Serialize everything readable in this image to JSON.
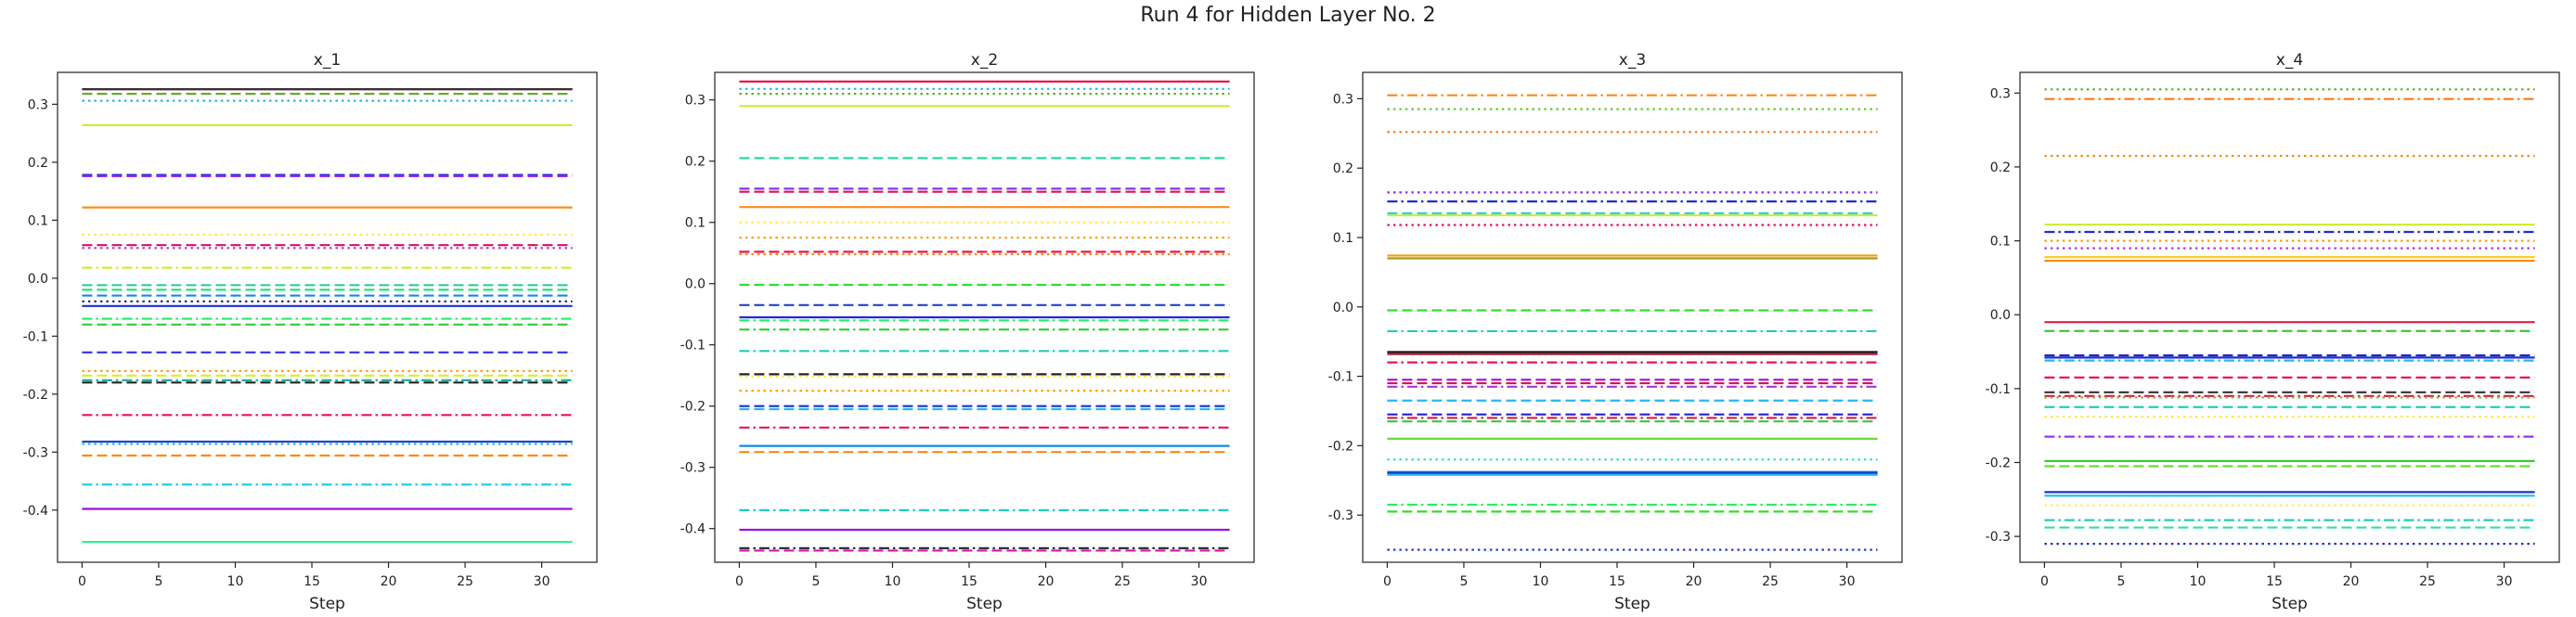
{
  "figure": {
    "title": "Run 4 for Hidden Layer No. 2"
  },
  "chart_data": [
    {
      "type": "line",
      "title": "x_1",
      "xlabel": "Step",
      "ylabel": "",
      "xlim": [
        -1.6,
        33.6
      ],
      "ylim": [
        -0.49,
        0.355
      ],
      "xticks": [
        0,
        5,
        10,
        15,
        20,
        25,
        30
      ],
      "yticks": [
        -0.4,
        -0.3,
        -0.2,
        -0.1,
        0.0,
        0.1,
        0.2,
        0.3
      ],
      "x_range": [
        0,
        32
      ],
      "grid": false,
      "series": [
        {
          "value": 0.326,
          "color": "#e6194b",
          "style": "solid"
        },
        {
          "value": 0.326,
          "color": "#333333",
          "style": "solid"
        },
        {
          "value": 0.318,
          "color": "#66aa33",
          "style": "dashed"
        },
        {
          "value": 0.306,
          "color": "#22bbdd",
          "style": "dotted"
        },
        {
          "value": 0.264,
          "color": "#ccee33",
          "style": "solid"
        },
        {
          "value": 0.178,
          "color": "#2222cc",
          "style": "dashed"
        },
        {
          "value": 0.176,
          "color": "#8833ee",
          "style": "dashed"
        },
        {
          "value": 0.122,
          "color": "#ff8c1a",
          "style": "solid"
        },
        {
          "value": 0.075,
          "color": "#ffe84d",
          "style": "dotted"
        },
        {
          "value": 0.057,
          "color": "#dd1155",
          "style": "dashed"
        },
        {
          "value": 0.052,
          "color": "#aa33dd",
          "style": "dotted"
        },
        {
          "value": 0.018,
          "color": "#ccee22",
          "style": "dashdot"
        },
        {
          "value": -0.012,
          "color": "#33cc99",
          "style": "dashed"
        },
        {
          "value": -0.02,
          "color": "#22dd77",
          "style": "dashed"
        },
        {
          "value": -0.03,
          "color": "#1188ee",
          "style": "dashed"
        },
        {
          "value": -0.04,
          "color": "#222288",
          "style": "dotted"
        },
        {
          "value": -0.048,
          "color": "#1a2fd6",
          "style": "solid"
        },
        {
          "value": -0.07,
          "color": "#22ee66",
          "style": "dashdot"
        },
        {
          "value": -0.08,
          "color": "#33cc33",
          "style": "dashed"
        },
        {
          "value": -0.128,
          "color": "#3333ee",
          "style": "dashed"
        },
        {
          "value": -0.16,
          "color": "#ff9900",
          "style": "dotted"
        },
        {
          "value": -0.168,
          "color": "#ddee22",
          "style": "dashed"
        },
        {
          "value": -0.176,
          "color": "#11aa99",
          "style": "dashdot"
        },
        {
          "value": -0.18,
          "color": "#222222",
          "style": "dashed"
        },
        {
          "value": -0.236,
          "color": "#ee1155",
          "style": "dashdot"
        },
        {
          "value": -0.282,
          "color": "#2244cc",
          "style": "solid"
        },
        {
          "value": -0.286,
          "color": "#22bbee",
          "style": "dotted"
        },
        {
          "value": -0.306,
          "color": "#ff8811",
          "style": "dashed"
        },
        {
          "value": -0.356,
          "color": "#22ccee",
          "style": "dashdot"
        },
        {
          "value": -0.398,
          "color": "#9911dd",
          "style": "solid"
        },
        {
          "value": -0.455,
          "color": "#33ee99",
          "style": "solid"
        }
      ]
    },
    {
      "type": "line",
      "title": "x_2",
      "xlabel": "Step",
      "ylabel": "",
      "xlim": [
        -1.6,
        33.6
      ],
      "ylim": [
        -0.455,
        0.345
      ],
      "xticks": [
        0,
        5,
        10,
        15,
        20,
        25,
        30
      ],
      "yticks": [
        -0.4,
        -0.3,
        -0.2,
        -0.1,
        0.0,
        0.1,
        0.2,
        0.3
      ],
      "x_range": [
        0,
        32
      ],
      "grid": false,
      "series": [
        {
          "value": 0.33,
          "color": "#e6194b",
          "style": "solid"
        },
        {
          "value": 0.318,
          "color": "#22bbdd",
          "style": "dotted"
        },
        {
          "value": 0.31,
          "color": "#66aa33",
          "style": "dotted"
        },
        {
          "value": 0.29,
          "color": "#ccee33",
          "style": "solid"
        },
        {
          "value": 0.205,
          "color": "#22ddaa",
          "style": "dashed"
        },
        {
          "value": 0.155,
          "color": "#8833ee",
          "style": "dashed"
        },
        {
          "value": 0.15,
          "color": "#dd1155",
          "style": "dashed"
        },
        {
          "value": 0.125,
          "color": "#ff8c1a",
          "style": "solid"
        },
        {
          "value": 0.1,
          "color": "#ffe84d",
          "style": "dotted"
        },
        {
          "value": 0.075,
          "color": "#ff9900",
          "style": "dotted"
        },
        {
          "value": 0.052,
          "color": "#ee1155",
          "style": "dashed"
        },
        {
          "value": 0.048,
          "color": "#ff8811",
          "style": "dotted"
        },
        {
          "value": -0.002,
          "color": "#33dd33",
          "style": "dashed"
        },
        {
          "value": -0.035,
          "color": "#2244cc",
          "style": "dashed"
        },
        {
          "value": -0.055,
          "color": "#1a2fd6",
          "style": "solid"
        },
        {
          "value": -0.06,
          "color": "#22ee66",
          "style": "dashdot"
        },
        {
          "value": -0.075,
          "color": "#33cc33",
          "style": "dashdot"
        },
        {
          "value": -0.11,
          "color": "#22ccbb",
          "style": "dashdot"
        },
        {
          "value": -0.148,
          "color": "#222222",
          "style": "dashed"
        },
        {
          "value": -0.152,
          "color": "#ffee55",
          "style": "dotted"
        },
        {
          "value": -0.175,
          "color": "#ff9900",
          "style": "dotted"
        },
        {
          "value": -0.2,
          "color": "#1a2fd6",
          "style": "dashed"
        },
        {
          "value": -0.205,
          "color": "#22bbee",
          "style": "dashed"
        },
        {
          "value": -0.235,
          "color": "#ee1155",
          "style": "dashdot"
        },
        {
          "value": -0.265,
          "color": "#1188ee",
          "style": "solid"
        },
        {
          "value": -0.275,
          "color": "#ff8811",
          "style": "dashed"
        },
        {
          "value": -0.37,
          "color": "#22ccbb",
          "style": "dashdot"
        },
        {
          "value": -0.402,
          "color": "#9911dd",
          "style": "solid"
        },
        {
          "value": -0.432,
          "color": "#222222",
          "style": "dashdot"
        },
        {
          "value": -0.436,
          "color": "#dd11aa",
          "style": "dashed"
        }
      ]
    },
    {
      "type": "line",
      "title": "x_3",
      "xlabel": "Step",
      "ylabel": "",
      "xlim": [
        -1.6,
        33.6
      ],
      "ylim": [
        -0.368,
        0.338
      ],
      "xticks": [
        0,
        5,
        10,
        15,
        20,
        25,
        30
      ],
      "yticks": [
        -0.3,
        -0.2,
        -0.1,
        0.0,
        0.1,
        0.2,
        0.3
      ],
      "x_range": [
        0,
        32
      ],
      "grid": false,
      "series": [
        {
          "value": 0.305,
          "color": "#ff8811",
          "style": "dashdot"
        },
        {
          "value": 0.285,
          "color": "#66cc33",
          "style": "dotted"
        },
        {
          "value": 0.252,
          "color": "#ff7711",
          "style": "dotted"
        },
        {
          "value": 0.165,
          "color": "#8833ee",
          "style": "dotted"
        },
        {
          "value": 0.152,
          "color": "#1a2fd6",
          "style": "dashdot"
        },
        {
          "value": 0.135,
          "color": "#22ccee",
          "style": "dashed"
        },
        {
          "value": 0.132,
          "color": "#ccee33",
          "style": "solid"
        },
        {
          "value": 0.118,
          "color": "#ee1155",
          "style": "dotted"
        },
        {
          "value": 0.074,
          "color": "#ff9900",
          "style": "solid"
        },
        {
          "value": 0.07,
          "color": "#999922",
          "style": "solid"
        },
        {
          "value": -0.005,
          "color": "#33dd33",
          "style": "dashed"
        },
        {
          "value": -0.035,
          "color": "#22ccbb",
          "style": "dashdot"
        },
        {
          "value": -0.065,
          "color": "#222222",
          "style": "solid"
        },
        {
          "value": -0.068,
          "color": "#aa2244",
          "style": "solid"
        },
        {
          "value": -0.08,
          "color": "#ee1155",
          "style": "dashdot"
        },
        {
          "value": -0.105,
          "color": "#9911dd",
          "style": "dashed"
        },
        {
          "value": -0.11,
          "color": "#dd1155",
          "style": "dashed"
        },
        {
          "value": -0.115,
          "color": "#aa33dd",
          "style": "dashdot"
        },
        {
          "value": -0.135,
          "color": "#22bbee",
          "style": "dashed"
        },
        {
          "value": -0.155,
          "color": "#2222cc",
          "style": "dashed"
        },
        {
          "value": -0.16,
          "color": "#dd1155",
          "style": "dashdot"
        },
        {
          "value": -0.165,
          "color": "#33cc33",
          "style": "dashed"
        },
        {
          "value": -0.19,
          "color": "#66dd33",
          "style": "solid"
        },
        {
          "value": -0.22,
          "color": "#33ddbb",
          "style": "dotted"
        },
        {
          "value": -0.238,
          "color": "#1166cc",
          "style": "solid"
        },
        {
          "value": -0.24,
          "color": "#1a2fd6",
          "style": "solid"
        },
        {
          "value": -0.242,
          "color": "#22bbee",
          "style": "solid"
        },
        {
          "value": -0.285,
          "color": "#22ee66",
          "style": "dashdot"
        },
        {
          "value": -0.295,
          "color": "#33dd33",
          "style": "dashed"
        },
        {
          "value": -0.35,
          "color": "#2233cc",
          "style": "dotted"
        }
      ]
    },
    {
      "type": "line",
      "title": "x_4",
      "xlabel": "Step",
      "ylabel": "",
      "xlim": [
        -1.6,
        33.6
      ],
      "ylim": [
        -0.335,
        0.328
      ],
      "xticks": [
        0,
        5,
        10,
        15,
        20,
        25,
        30
      ],
      "yticks": [
        -0.3,
        -0.2,
        -0.1,
        0.0,
        0.1,
        0.2,
        0.3
      ],
      "x_range": [
        0,
        32
      ],
      "grid": false,
      "series": [
        {
          "value": 0.305,
          "color": "#66aa33",
          "style": "dotted"
        },
        {
          "value": 0.292,
          "color": "#ff7711",
          "style": "dashdot"
        },
        {
          "value": 0.215,
          "color": "#ff8811",
          "style": "dotted"
        },
        {
          "value": 0.122,
          "color": "#ccee33",
          "style": "solid"
        },
        {
          "value": 0.112,
          "color": "#1a2fd6",
          "style": "dashdot"
        },
        {
          "value": 0.1,
          "color": "#ff9900",
          "style": "dotted"
        },
        {
          "value": 0.09,
          "color": "#aa33dd",
          "style": "dotted"
        },
        {
          "value": 0.078,
          "color": "#ffcc22",
          "style": "solid"
        },
        {
          "value": 0.073,
          "color": "#ff8811",
          "style": "solid"
        },
        {
          "value": -0.01,
          "color": "#e6194b",
          "style": "solid"
        },
        {
          "value": -0.022,
          "color": "#33cc33",
          "style": "dashed"
        },
        {
          "value": -0.055,
          "color": "#2222cc",
          "style": "dashed"
        },
        {
          "value": -0.058,
          "color": "#1a2fd6",
          "style": "solid"
        },
        {
          "value": -0.062,
          "color": "#22bbee",
          "style": "dashdot"
        },
        {
          "value": -0.085,
          "color": "#ee1155",
          "style": "dashed"
        },
        {
          "value": -0.105,
          "color": "#333333",
          "style": "dashed"
        },
        {
          "value": -0.11,
          "color": "#dd1155",
          "style": "dashdot"
        },
        {
          "value": -0.112,
          "color": "#99aa33",
          "style": "dotted"
        },
        {
          "value": -0.125,
          "color": "#22ccbb",
          "style": "dashed"
        },
        {
          "value": -0.138,
          "color": "#ffe84d",
          "style": "dotted"
        },
        {
          "value": -0.165,
          "color": "#9933ee",
          "style": "dashdot"
        },
        {
          "value": -0.198,
          "color": "#33cc33",
          "style": "solid"
        },
        {
          "value": -0.205,
          "color": "#66dd33",
          "style": "dashed"
        },
        {
          "value": -0.24,
          "color": "#1a2fd6",
          "style": "solid"
        },
        {
          "value": -0.245,
          "color": "#22bbee",
          "style": "solid"
        },
        {
          "value": -0.258,
          "color": "#ffee55",
          "style": "dotted"
        },
        {
          "value": -0.278,
          "color": "#22ccbb",
          "style": "dashdot"
        },
        {
          "value": -0.288,
          "color": "#33ddaa",
          "style": "dashed"
        },
        {
          "value": -0.31,
          "color": "#2233cc",
          "style": "dotted"
        }
      ]
    }
  ]
}
